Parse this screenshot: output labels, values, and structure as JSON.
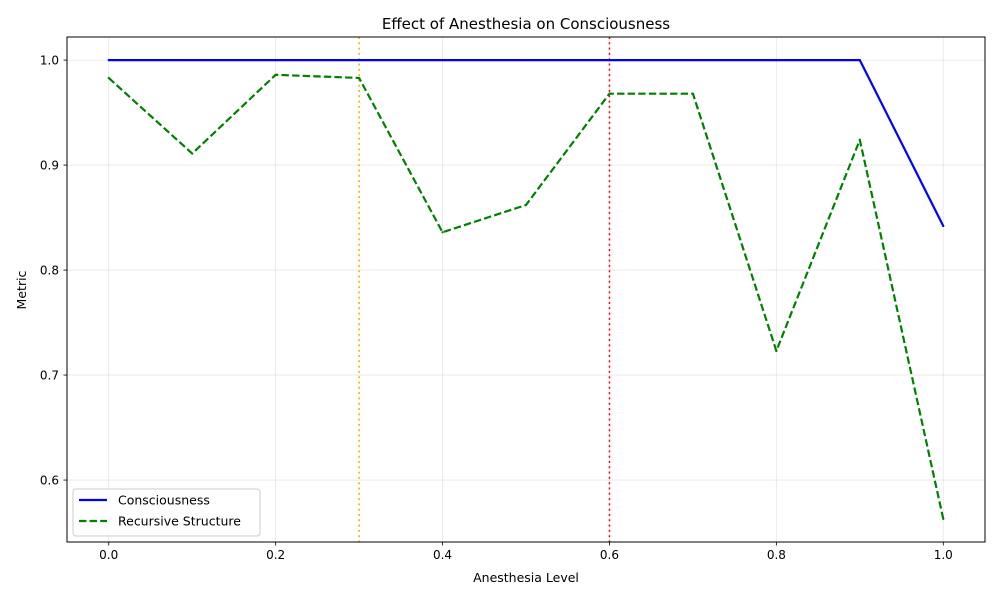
{
  "chart_data": {
    "type": "line",
    "title": "Effect of Anesthesia on Consciousness",
    "xlabel": "Anesthesia Level",
    "ylabel": "Metric",
    "xlim": [
      -0.05,
      1.05
    ],
    "ylim": [
      0.541,
      1.022
    ],
    "x_ticks": [
      0.0,
      0.2,
      0.4,
      0.6,
      0.8,
      1.0
    ],
    "x_tick_labels": [
      "0.0",
      "0.2",
      "0.4",
      "0.6",
      "0.8",
      "1.0"
    ],
    "y_ticks": [
      0.6,
      0.7,
      0.8,
      0.9,
      1.0
    ],
    "y_tick_labels": [
      "0.6",
      "0.7",
      "0.8",
      "0.9",
      "1.0"
    ],
    "grid": true,
    "legend_position": "lower-left",
    "x": [
      0.0,
      0.1,
      0.2,
      0.3,
      0.4,
      0.5,
      0.6,
      0.7,
      0.8,
      0.9,
      1.0
    ],
    "series": [
      {
        "name": "Consciousness",
        "color": "#0000ff",
        "style": "solid",
        "values": [
          1.0,
          1.0,
          1.0,
          1.0,
          1.0,
          1.0,
          1.0,
          1.0,
          1.0,
          1.0,
          0.842
        ]
      },
      {
        "name": "Recursive Structure",
        "color": "#008000",
        "style": "dashed",
        "values": [
          0.983,
          0.911,
          0.986,
          0.983,
          0.836,
          0.862,
          0.968,
          0.968,
          0.723,
          0.924,
          0.563
        ]
      }
    ],
    "vertical_lines": [
      {
        "x": 0.3,
        "color": "#ffa500",
        "style": "dotted"
      },
      {
        "x": 0.6,
        "color": "#ff0000",
        "style": "dotted"
      }
    ]
  }
}
